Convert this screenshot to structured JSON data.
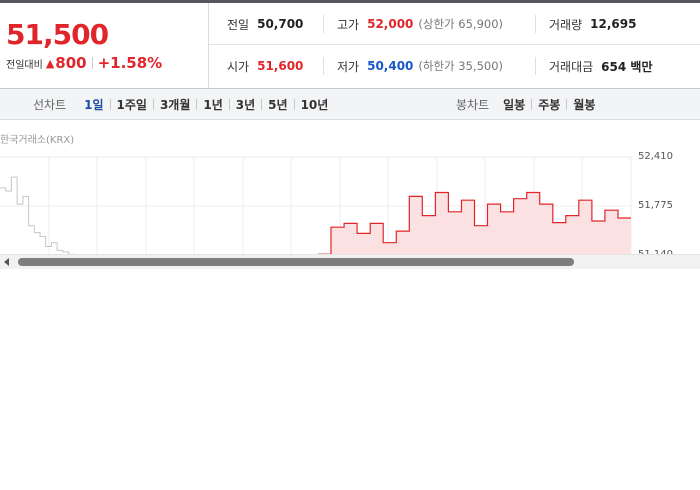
{
  "quote": {
    "price": "51,500",
    "change_label": "전일대비",
    "change_arrow": "▲",
    "change_amount": "800",
    "change_percent": "+1.58%"
  },
  "stats": {
    "prev_close": {
      "label": "전일",
      "value": "50,700"
    },
    "high": {
      "label": "고가",
      "value": "52,000",
      "limit_text": "(상한가 65,900)"
    },
    "volume": {
      "label": "거래량",
      "value": "12,695"
    },
    "open": {
      "label": "시가",
      "value": "51,600"
    },
    "low": {
      "label": "저가",
      "value": "50,400",
      "limit_text": "(하한가 35,500)"
    },
    "trade_value": {
      "label": "거래대금",
      "value": "654 백만"
    }
  },
  "tabs": {
    "line_chart_label": "선차트",
    "line_periods": [
      "1일",
      "1주일",
      "3개월",
      "1년",
      "3년",
      "5년",
      "10년"
    ],
    "active_period": "1일",
    "candle_chart_label": "봉차트",
    "candle_periods": [
      "일봉",
      "주봉",
      "월봉"
    ]
  },
  "chart": {
    "source_label": "한국거래소(KRX)",
    "y_ticks": [
      "52,410",
      "51,775",
      "51,140"
    ]
  },
  "chart_data": {
    "type": "line",
    "ylim": [
      51140,
      52410
    ],
    "grid": true,
    "series": [
      {
        "values": [
          52010,
          51970,
          52150,
          51800,
          51900,
          51520,
          51430,
          51380,
          51250,
          51300,
          51200,
          51180,
          51150,
          51140
        ]
      },
      {
        "values": [
          51150,
          51500,
          51550,
          51420,
          51550,
          51300,
          51450,
          51900,
          51650,
          51950,
          51700,
          51850,
          51520,
          51800,
          51700,
          51870,
          51950,
          51800,
          51560,
          51650,
          51850,
          51580,
          51720,
          51620
        ]
      }
    ]
  },
  "colors": {
    "up": "#e0262b",
    "down": "#1a57c7",
    "previous_line": "#c6c6c6",
    "area_fill": "#fbe1e2"
  }
}
